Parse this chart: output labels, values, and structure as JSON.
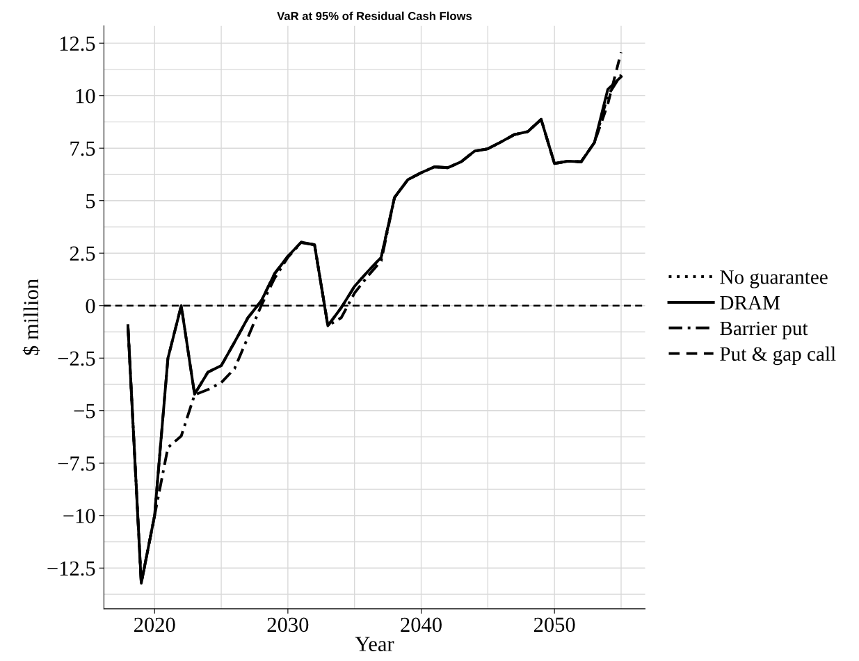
{
  "chart_data": {
    "type": "line",
    "title": "VaR at 95% of Residual Cash Flows",
    "xlabel": "Year",
    "ylabel": "$ million",
    "x": [
      2018,
      2019,
      2020,
      2021,
      2022,
      2023,
      2024,
      2025,
      2026,
      2027,
      2028,
      2029,
      2030,
      2031,
      2032,
      2033,
      2034,
      2035,
      2036,
      2037,
      2038,
      2039,
      2040,
      2041,
      2042,
      2043,
      2044,
      2045,
      2046,
      2047,
      2048,
      2049,
      2050,
      2051,
      2052,
      2053,
      2054,
      2055
    ],
    "series": [
      {
        "name": "No guarantee",
        "color": "#000000",
        "line_style": "dotted",
        "values": [
          null,
          null,
          null,
          null,
          null,
          null,
          null,
          null,
          null,
          null,
          null,
          null,
          null,
          null,
          null,
          null,
          null,
          null,
          null,
          null,
          null,
          null,
          null,
          null,
          null,
          null,
          null,
          null,
          null,
          null,
          null,
          null,
          null,
          null,
          null,
          null,
          null,
          null
        ]
      },
      {
        "name": "DRAM",
        "color": "#000000",
        "line_style": "solid",
        "values": [
          -0.95,
          -13.22,
          -10.0,
          -2.51,
          0.0,
          -4.22,
          -3.17,
          -2.86,
          -1.74,
          -0.58,
          0.22,
          1.52,
          2.35,
          3.02,
          2.9,
          -0.96,
          -0.1,
          0.92,
          1.63,
          2.3,
          5.15,
          6.0,
          6.33,
          6.61,
          6.57,
          6.85,
          7.36,
          7.47,
          7.8,
          8.15,
          8.29,
          8.87,
          6.77,
          6.88,
          6.85,
          7.77,
          10.3,
          10.9
        ]
      },
      {
        "name": "Barrier put",
        "color": "#000000",
        "line_style": "dashdot",
        "values": [
          -0.95,
          -13.22,
          -10.0,
          -6.76,
          -6.21,
          -4.25,
          -4.0,
          -3.67,
          -3.0,
          -1.51,
          0.0,
          1.3,
          2.3,
          3.0,
          2.9,
          -0.95,
          -0.58,
          0.6,
          1.41,
          2.13,
          5.15,
          6.0,
          6.33,
          6.61,
          6.57,
          6.85,
          7.36,
          7.47,
          7.8,
          8.15,
          8.29,
          8.87,
          6.77,
          6.88,
          6.85,
          7.77,
          10.0,
          11.0
        ]
      },
      {
        "name": "Put & gap call",
        "color": "#000000",
        "line_style": "dashed",
        "values": [
          -0.95,
          -13.22,
          -10.0,
          -2.51,
          0.0,
          -4.22,
          -3.17,
          -2.86,
          -1.74,
          -0.58,
          0.22,
          1.52,
          2.35,
          3.02,
          2.9,
          -0.96,
          -0.1,
          0.92,
          1.63,
          2.3,
          5.15,
          6.0,
          6.33,
          6.61,
          6.57,
          6.85,
          7.36,
          7.47,
          7.8,
          8.15,
          8.29,
          8.87,
          6.77,
          6.88,
          6.85,
          7.77,
          9.6,
          12.07
        ]
      }
    ],
    "xlim": [
      2016.2,
      2056.8
    ],
    "xticks": [
      2020,
      2030,
      2040,
      2050
    ],
    "ylim": [
      -14.44,
      13.33
    ],
    "yticks": [
      {
        "value": -12.5,
        "label": "−12.5"
      },
      {
        "value": -10,
        "label": "−10"
      },
      {
        "value": -7.5,
        "label": "−7.5"
      },
      {
        "value": -5,
        "label": "−5"
      },
      {
        "value": -2.5,
        "label": "−2.5"
      },
      0,
      2.5,
      5,
      7.5,
      10,
      12.5
    ],
    "ref_lines": [
      {
        "axis": "y",
        "value": 0,
        "color": "#000000",
        "line_style": "dashed"
      }
    ],
    "grid": true,
    "legend": "right"
  }
}
